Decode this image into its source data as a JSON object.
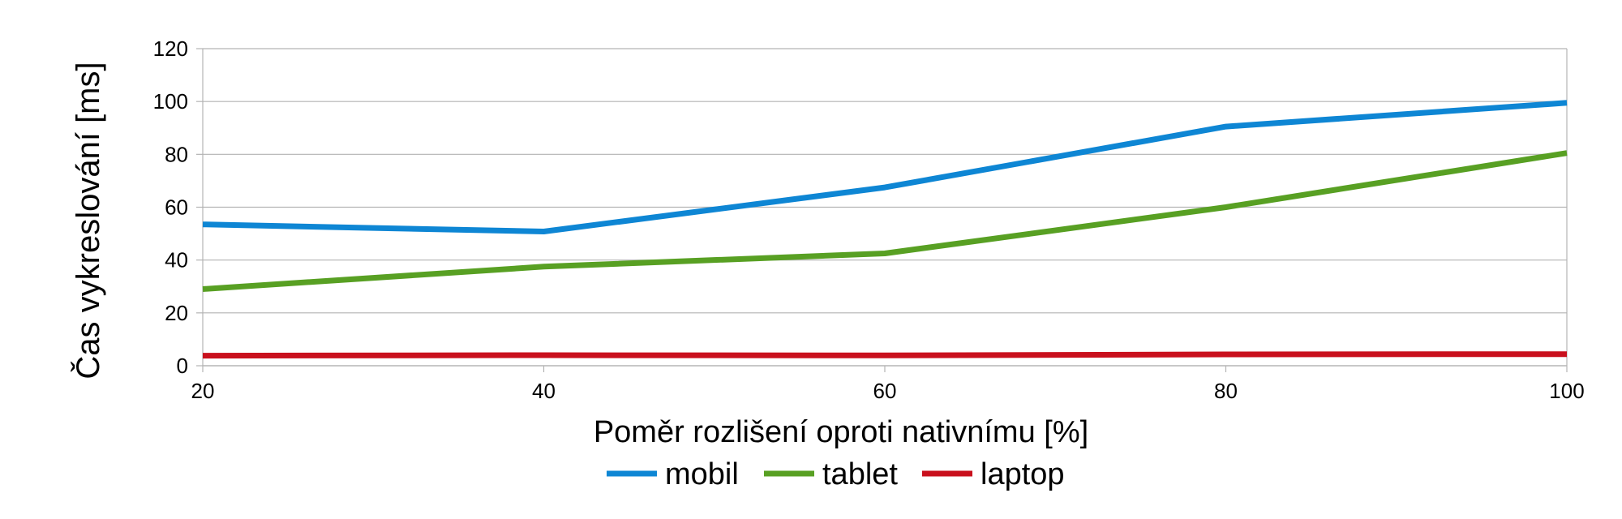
{
  "chart_data": {
    "type": "line",
    "title": "",
    "xlabel": "Poměr rozlišení oproti nativnímu [%]",
    "ylabel": "Čas vykreslování [ms]",
    "x": [
      20,
      40,
      60,
      80,
      100
    ],
    "xlim": [
      20,
      100
    ],
    "ylim": [
      0,
      120
    ],
    "xticks": [
      20,
      40,
      60,
      80,
      100
    ],
    "yticks": [
      0,
      20,
      40,
      60,
      80,
      100,
      120
    ],
    "grid": "horizontal",
    "legend_position": "bottom",
    "series": [
      {
        "name": "mobil",
        "color": "#0e86d4",
        "values": [
          53.5,
          50.8,
          67.5,
          90.5,
          99.5
        ]
      },
      {
        "name": "tablet",
        "color": "#58a023",
        "values": [
          29,
          37.5,
          42.5,
          60,
          80.5
        ]
      },
      {
        "name": "laptop",
        "color": "#c9101d",
        "values": [
          3.8,
          4,
          3.9,
          4.3,
          4.4
        ]
      }
    ]
  }
}
